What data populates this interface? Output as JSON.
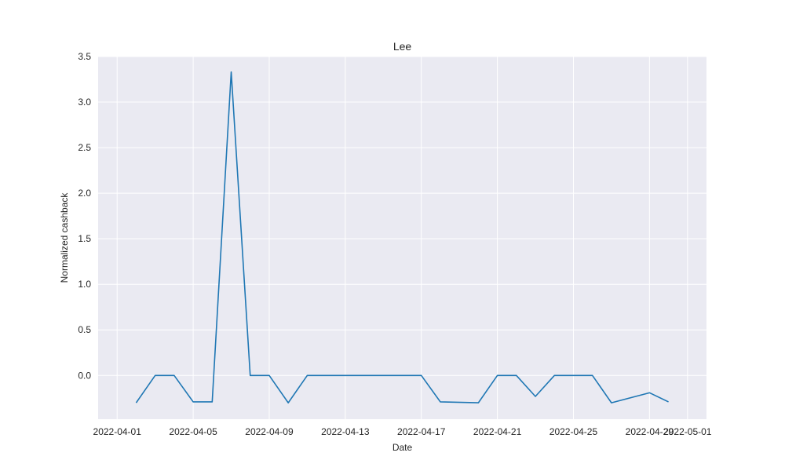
{
  "chart_data": {
    "type": "line",
    "title": "Lee",
    "xlabel": "Date",
    "ylabel": "Normalized cashback",
    "xlim": [
      "2022-03-31",
      "2022-05-02"
    ],
    "ylim": [
      -0.48,
      3.5
    ],
    "x_ticks": [
      "2022-04-01",
      "2022-04-05",
      "2022-04-09",
      "2022-04-13",
      "2022-04-17",
      "2022-04-21",
      "2022-04-25",
      "2022-04-29",
      "2022-05-01"
    ],
    "y_ticks": [
      "0.0",
      "0.5",
      "1.0",
      "1.5",
      "2.0",
      "2.5",
      "3.0",
      "3.5"
    ],
    "grid": true,
    "background_color": "#eaeaf2",
    "line_color": "#1f77b4",
    "series": [
      {
        "x": [
          "2022-04-02",
          "2022-04-03",
          "2022-04-04",
          "2022-04-05",
          "2022-04-06",
          "2022-04-07",
          "2022-04-08",
          "2022-04-09",
          "2022-04-10",
          "2022-04-11",
          "2022-04-17",
          "2022-04-18",
          "2022-04-20",
          "2022-04-21",
          "2022-04-22",
          "2022-04-23",
          "2022-04-24",
          "2022-04-26",
          "2022-04-27",
          "2022-04-29",
          "2022-04-30"
        ],
        "y": [
          -0.3,
          0.0,
          0.0,
          -0.29,
          -0.29,
          3.33,
          0.0,
          0.0,
          -0.3,
          0.0,
          0.0,
          -0.29,
          -0.3,
          0.0,
          0.0,
          -0.23,
          0.0,
          0.0,
          -0.3,
          -0.19,
          -0.29
        ]
      }
    ]
  }
}
